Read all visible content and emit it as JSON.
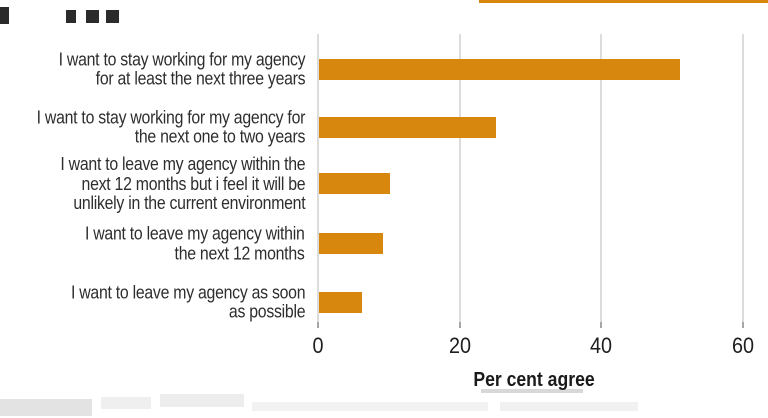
{
  "chart_data": {
    "type": "bar",
    "orientation": "horizontal",
    "title": "",
    "categories": [
      "I want to stay working for my agency for at least the next three years",
      "I want to stay working for my agency for the next one to two years",
      "I want to leave my agency within the next 12 months but i feel it will be unlikely in the current environment",
      "I want to leave my agency within the next 12 months",
      "I want to leave my agency as soon as possible"
    ],
    "category_lines": [
      [
        "I want to stay working for my agency",
        "for at least the next three years"
      ],
      [
        "I want to stay working for my agency for",
        "the next one to two years"
      ],
      [
        "I want to leave my agency within the",
        "next 12 months but i feel it will be",
        "unlikely in the current environment"
      ],
      [
        "I want to leave my agency within",
        "the next 12 months"
      ],
      [
        "I want to leave my agency as soon",
        "as possible"
      ]
    ],
    "values": [
      51,
      25,
      10,
      9,
      6
    ],
    "xlabel": "Per cent agree",
    "ylabel": "",
    "xticks": [
      0,
      20,
      40,
      60
    ],
    "xlim": [
      0,
      60
    ],
    "grid": "vertical gridlines on, no axis frame",
    "legend": "none"
  },
  "colors": {
    "bar": "#D7870E",
    "label_text": "#2E2E2E",
    "tick_text": "#1D1D1D",
    "gridline": "#DCDCDC",
    "tick_mark": "#A6A6A6"
  }
}
